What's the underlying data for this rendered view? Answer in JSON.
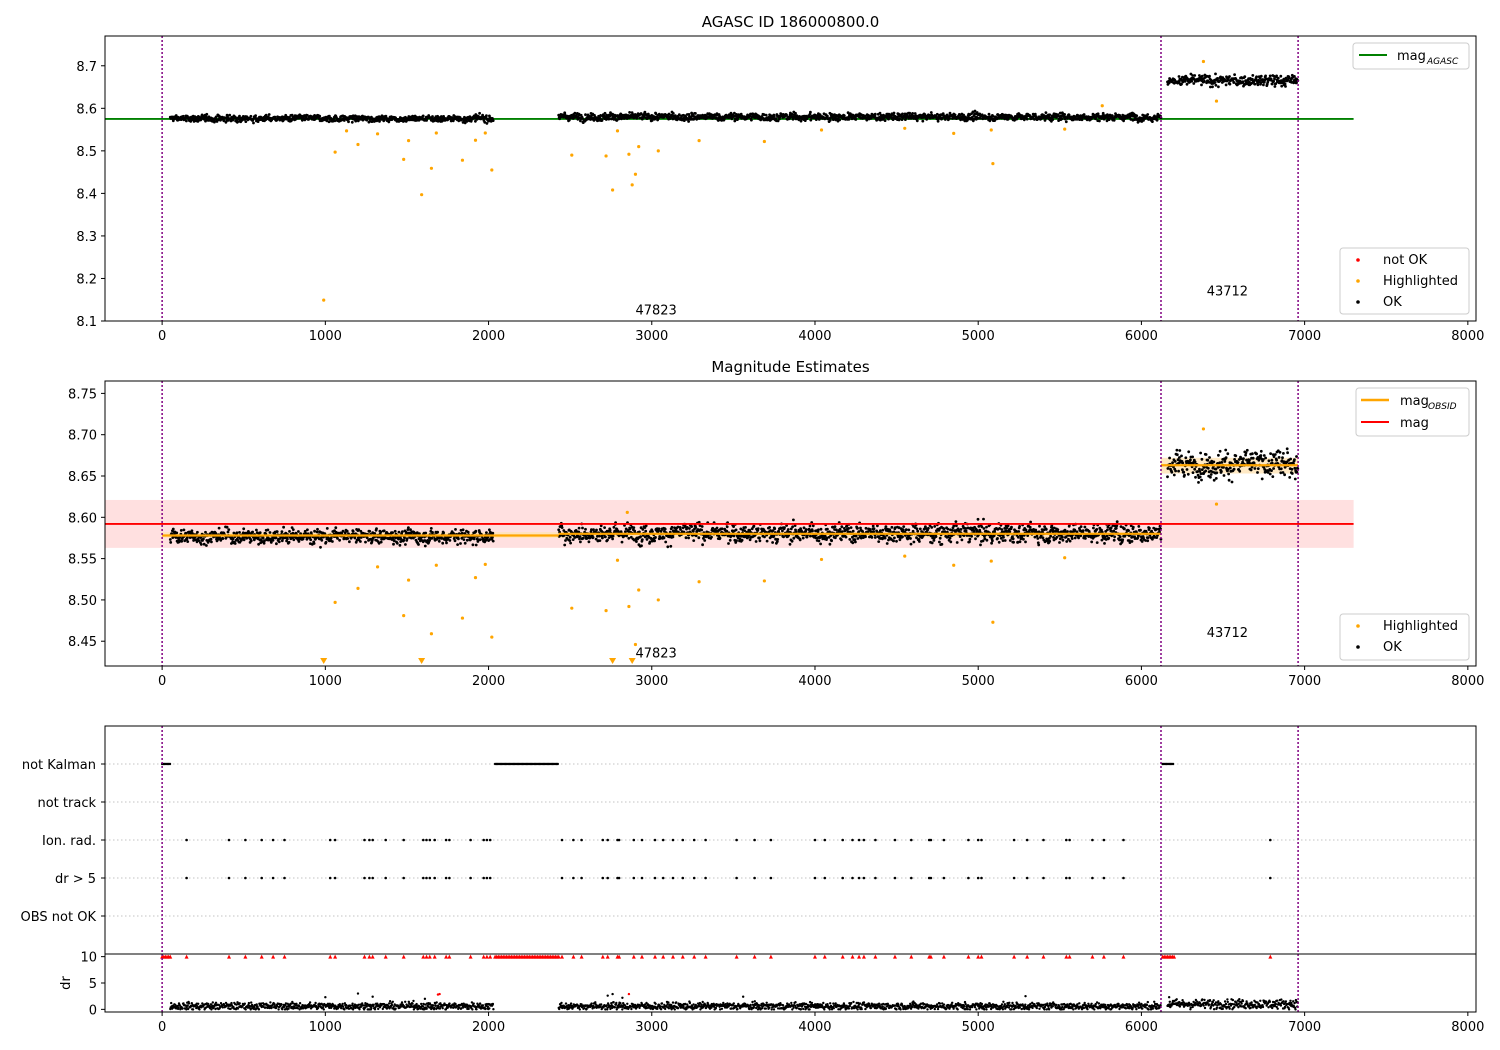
{
  "colors": {
    "ok": "#000000",
    "highlighted": "#FFA500",
    "not_ok": "#FF0000",
    "agasc_line": "#008000",
    "obsid_line": "#FFA500",
    "mag_line": "#FF0000",
    "band_fill": "#FFD6D6",
    "vline": "#800080",
    "grid": "#B0B0B0"
  },
  "chart_data": [
    {
      "type": "scatter",
      "title": "AGASC ID 186000800.0",
      "xlim": [
        -350,
        8050
      ],
      "ylim": [
        8.1,
        8.77
      ],
      "xticks": [
        0,
        1000,
        2000,
        3000,
        4000,
        5000,
        6000,
        7000,
        8000
      ],
      "yticks": [
        8.1,
        8.2,
        8.3,
        8.4,
        8.5,
        8.6,
        8.7
      ],
      "vlines": [
        0,
        6120,
        6960
      ],
      "obsid_labels": [
        {
          "text": "47823",
          "x": 2900,
          "y": 8.115
        },
        {
          "text": "43712",
          "x": 6400,
          "y": 8.16
        }
      ],
      "lines": [
        {
          "name": "mag_AGASC",
          "x": [
            -350,
            7300
          ],
          "y": [
            8.575,
            8.575
          ]
        }
      ],
      "legend_lines": {
        "items": [
          {
            "label": "mag",
            "sub": "AGASC"
          }
        ],
        "loc": "upper right"
      },
      "legend_points": {
        "items": [
          "not OK",
          "Highlighted",
          "OK"
        ],
        "loc": "lower right"
      },
      "segments": [
        {
          "x": [
            50,
            2030
          ],
          "y": 8.576,
          "sd": 0.006
        },
        {
          "x": [
            2430,
            6120
          ],
          "y": 8.58,
          "sd": 0.007
        },
        {
          "x": [
            6160,
            6960
          ],
          "y": 8.665,
          "sd": 0.01
        }
      ],
      "highlighted_points": [
        [
          990,
          8.149
        ],
        [
          1060,
          8.497
        ],
        [
          1130,
          8.547
        ],
        [
          1200,
          8.515
        ],
        [
          1320,
          8.54
        ],
        [
          1480,
          8.48
        ],
        [
          1510,
          8.524
        ],
        [
          1590,
          8.397
        ],
        [
          1650,
          8.459
        ],
        [
          1680,
          8.542
        ],
        [
          1840,
          8.478
        ],
        [
          1920,
          8.525
        ],
        [
          1980,
          8.542
        ],
        [
          2020,
          8.455
        ],
        [
          2510,
          8.49
        ],
        [
          2720,
          8.488
        ],
        [
          2760,
          8.408
        ],
        [
          2790,
          8.547
        ],
        [
          2860,
          8.492
        ],
        [
          2880,
          8.42
        ],
        [
          2900,
          8.445
        ],
        [
          2920,
          8.51
        ],
        [
          3040,
          8.5
        ],
        [
          3290,
          8.524
        ],
        [
          3690,
          8.522
        ],
        [
          4040,
          8.549
        ],
        [
          4550,
          8.553
        ],
        [
          4850,
          8.541
        ],
        [
          5080,
          8.549
        ],
        [
          5090,
          8.47
        ],
        [
          5530,
          8.551
        ],
        [
          6460,
          8.617
        ],
        [
          6380,
          8.71
        ],
        [
          5760,
          8.606
        ]
      ]
    },
    {
      "type": "scatter",
      "title": "Magnitude Estimates",
      "xlim": [
        -350,
        8050
      ],
      "ylim": [
        8.42,
        8.765
      ],
      "xticks": [
        0,
        1000,
        2000,
        3000,
        4000,
        5000,
        6000,
        7000,
        8000
      ],
      "yticks": [
        8.45,
        8.5,
        8.55,
        8.6,
        8.65,
        8.7,
        8.75
      ],
      "vlines": [
        0,
        6120,
        6960
      ],
      "obsid_labels": [
        {
          "text": "47823",
          "x": 2900,
          "y": 8.43
        },
        {
          "text": "43712",
          "x": 6400,
          "y": 8.455
        }
      ],
      "mag": 8.592,
      "mag_band": [
        8.563,
        8.621
      ],
      "mag_x": [
        -350,
        7300
      ],
      "obsid_mags": [
        {
          "x": [
            0,
            2430
          ],
          "y": 8.578
        },
        {
          "x": [
            2430,
            6120
          ],
          "y": 8.58
        },
        {
          "x": [
            6120,
            6960
          ],
          "y": 8.663
        }
      ],
      "legend_lines": {
        "items": [
          {
            "label": "mag",
            "sub": "OBSID"
          },
          {
            "label": "mag",
            "sub": ""
          }
        ],
        "loc": "upper right"
      },
      "legend_points": {
        "items": [
          "Highlighted",
          "OK"
        ],
        "loc": "lower right"
      },
      "segments": [
        {
          "x": [
            50,
            2030
          ],
          "y": 8.577,
          "sd": 0.007
        },
        {
          "x": [
            2430,
            6120
          ],
          "y": 8.581,
          "sd": 0.009
        },
        {
          "x": [
            6160,
            6960
          ],
          "y": 8.664,
          "sd": 0.012
        }
      ],
      "highlighted_points": [
        [
          1060,
          8.497
        ],
        [
          1200,
          8.514
        ],
        [
          1320,
          8.54
        ],
        [
          1480,
          8.481
        ],
        [
          1510,
          8.524
        ],
        [
          1650,
          8.459
        ],
        [
          1680,
          8.542
        ],
        [
          1840,
          8.478
        ],
        [
          1920,
          8.527
        ],
        [
          1980,
          8.543
        ],
        [
          2020,
          8.455
        ],
        [
          2510,
          8.49
        ],
        [
          2720,
          8.487
        ],
        [
          2790,
          8.548
        ],
        [
          2860,
          8.492
        ],
        [
          2900,
          8.446
        ],
        [
          2920,
          8.512
        ],
        [
          3040,
          8.5
        ],
        [
          3290,
          8.522
        ],
        [
          3690,
          8.523
        ],
        [
          4040,
          8.549
        ],
        [
          4550,
          8.553
        ],
        [
          4850,
          8.542
        ],
        [
          5080,
          8.547
        ],
        [
          5090,
          8.473
        ],
        [
          5530,
          8.551
        ],
        [
          6460,
          8.616
        ],
        [
          6380,
          8.707
        ],
        [
          2850,
          8.606
        ]
      ],
      "clipped_points": [
        990,
        1590,
        2760,
        2880
      ]
    },
    {
      "type": "scatter",
      "title": "",
      "xlim": [
        -350,
        8050
      ],
      "xticks": [
        0,
        1000,
        2000,
        3000,
        4000,
        5000,
        6000,
        7000,
        8000
      ],
      "vlines": [
        0,
        6120,
        6960
      ],
      "flag_labels": [
        "not Kalman",
        "not track",
        "Ion. rad.",
        "dr > 5",
        "OBS not OK"
      ],
      "not_kalman_ranges": [
        [
          0,
          50
        ],
        [
          2040,
          2430
        ],
        [
          6130,
          6200
        ]
      ],
      "ion_rad_x": [
        150,
        410,
        510,
        610,
        680,
        750,
        1030,
        1060,
        1240,
        1270,
        1290,
        1370,
        1480,
        1600,
        1620,
        1640,
        1670,
        1740,
        1760,
        1890,
        1970,
        1990,
        2010,
        2450,
        2520,
        2570,
        2700,
        2730,
        2790,
        2800,
        2890,
        2940,
        3020,
        3070,
        3130,
        3190,
        3260,
        3330,
        3520,
        3630,
        3730,
        4000,
        4060,
        4170,
        4230,
        4270,
        4300,
        4370,
        4490,
        4590,
        4700,
        4710,
        4790,
        4940,
        5000,
        5020,
        5220,
        5300,
        5400,
        5540,
        5560,
        5700,
        5770,
        5890,
        6790
      ],
      "dr": {
        "ylabel": "dr",
        "yticks": [
          0,
          5,
          10
        ],
        "ylim": [
          -0.5,
          10.5
        ],
        "segments": [
          {
            "x": [
              50,
              2030
            ],
            "y": 0.6,
            "sd": 0.35
          },
          {
            "x": [
              2430,
              6120
            ],
            "y": 0.6,
            "sd": 0.35
          },
          {
            "x": [
              6160,
              6960
            ],
            "y": 1.0,
            "sd": 0.45
          }
        ],
        "outliers": [
          [
            1000,
            2.3
          ],
          [
            1200,
            3.0
          ],
          [
            1290,
            2.4
          ],
          [
            1540,
            1.6
          ],
          [
            1610,
            2.0
          ],
          [
            2730,
            2.6
          ],
          [
            2760,
            2.9
          ],
          [
            2820,
            2.2
          ],
          [
            3560,
            2.4
          ],
          [
            5290,
            2.5
          ],
          [
            6170,
            2.3
          ]
        ],
        "red_outliers": [
          [
            1690,
            2.8
          ],
          [
            1700,
            2.9
          ],
          [
            2860,
            2.9
          ]
        ]
      }
    }
  ]
}
